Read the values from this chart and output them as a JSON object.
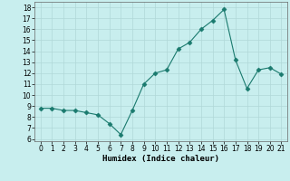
{
  "x": [
    0,
    1,
    2,
    3,
    4,
    5,
    6,
    7,
    8,
    9,
    10,
    11,
    12,
    13,
    14,
    15,
    16,
    17,
    18,
    19,
    20,
    21
  ],
  "y": [
    8.8,
    8.8,
    8.6,
    8.6,
    8.4,
    8.2,
    7.4,
    6.4,
    8.6,
    11.0,
    12.0,
    12.3,
    14.2,
    14.8,
    16.0,
    16.8,
    17.8,
    13.2,
    10.6,
    12.3,
    12.5,
    11.9
  ],
  "line_color": "#1a7a6e",
  "marker": "D",
  "marker_size": 2.5,
  "bg_color": "#c8eeee",
  "grid_color": "#b0d8d8",
  "xlabel": "Humidex (Indice chaleur)",
  "xlim": [
    -0.5,
    21.5
  ],
  "ylim": [
    5.8,
    18.5
  ],
  "xticks": [
    0,
    1,
    2,
    3,
    4,
    5,
    6,
    7,
    8,
    9,
    10,
    11,
    12,
    13,
    14,
    15,
    16,
    17,
    18,
    19,
    20,
    21
  ],
  "yticks": [
    6,
    7,
    8,
    9,
    10,
    11,
    12,
    13,
    14,
    15,
    16,
    17,
    18
  ],
  "xlabel_fontsize": 6.5,
  "tick_fontsize": 5.5
}
